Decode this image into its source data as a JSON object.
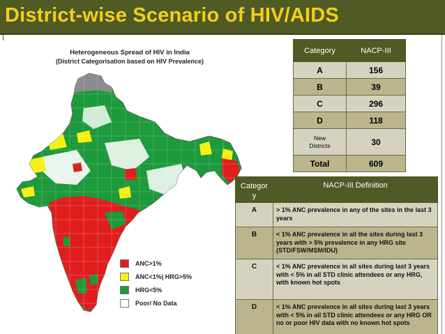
{
  "slide": {
    "title": "District-wise Scenario of HIV/AIDS"
  },
  "map": {
    "title_line1": "Heterogeneous Spread of HIV in India",
    "title_line2": "(District Categorisation based on HIV Prevalence)",
    "legend": [
      {
        "label": "ANC>1%",
        "color": "#e01e1e"
      },
      {
        "label": "ANC<1%| HRG>5%",
        "color": "#f7ef14"
      },
      {
        "label": "HRG<5%",
        "color": "#1c9a3c"
      },
      {
        "label": "Poor/ No Data",
        "color": "#ffffff"
      }
    ],
    "colors": {
      "red": "#e01e1e",
      "green": "#1c9a3c",
      "yellow": "#f7ef14",
      "white": "#ffffff",
      "grey": "#8c8c8c"
    }
  },
  "category_table": {
    "headers": [
      "Category",
      "NACP-III"
    ],
    "rows": [
      {
        "category": "A",
        "value": "156"
      },
      {
        "category": "B",
        "value": "39"
      },
      {
        "category": "C",
        "value": "296"
      },
      {
        "category": "D",
        "value": "118"
      },
      {
        "category": "New Districts",
        "value": "30"
      },
      {
        "category": "Total",
        "value": "609"
      }
    ]
  },
  "definition_table": {
    "headers": [
      "Category",
      "NACP-III Definition"
    ],
    "rows": [
      {
        "category": "A",
        "definition": "> 1% ANC prevalence in any of the sites in the last 3 years"
      },
      {
        "category": "B",
        "definition": "< 1% ANC prevalence in all the sites during last 3 years with > 5% prevalence in any HRG site (STD/FSW/MSM/IDU)"
      },
      {
        "category": "C",
        "definition": "< 1% ANC prevalence in all sites during last 3 years with < 5% in all STD clinic attendees or any HRG, with known hot spots"
      },
      {
        "category": "D",
        "definition": "< 1% ANC prevalence in all sites during last 3 years with < 5% in all STD clinic attendees or any HRG OR no or poor HIV data with no known hot spots"
      }
    ]
  }
}
